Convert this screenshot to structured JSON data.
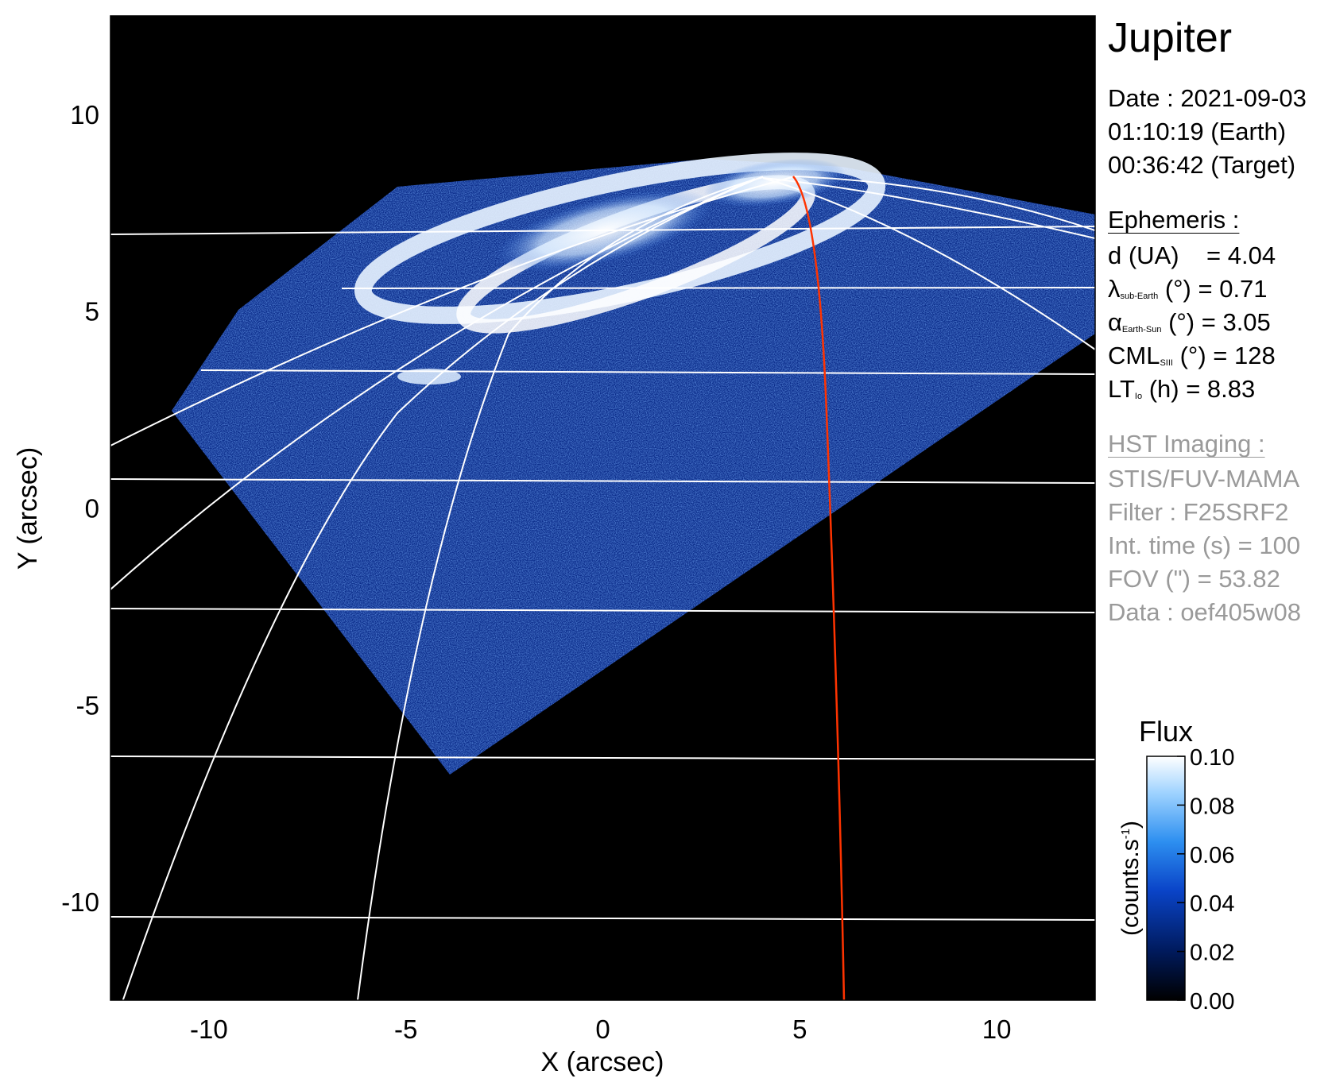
{
  "figure": {
    "target": "Jupiter",
    "date_line": "Date : 2021-09-03",
    "time_earth": "01:10:19 (Earth)",
    "time_target": "00:36:42 (Target)"
  },
  "ephemeris": {
    "header": "Ephemeris :",
    "d_label": "d (UA)",
    "d_value": "= 4.04",
    "lambda_label": "λ",
    "lambda_sub": "sub-Earth",
    "lambda_rest": "(°) = 0.71",
    "alpha_label": "α",
    "alpha_sub": "Earth-Sun",
    "alpha_rest": "(°) = 3.05",
    "cml_label": "CML",
    "cml_sub": "SIII",
    "cml_rest": "(°) = 128",
    "lt_label": "LT",
    "lt_sub": "Io",
    "lt_rest": "(h) = 8.83"
  },
  "hst": {
    "header": "HST Imaging :",
    "instrument": "STIS/FUV-MAMA",
    "filter": "Filter : F25SRF2",
    "int_time": "Int. time (s) = 100",
    "fov": "FOV (\") = 53.82",
    "data": "Data : oef405w08"
  },
  "colorbar": {
    "title": "Flux",
    "unit": "(counts.s",
    "unit_sup": "-1",
    "unit_close": ")",
    "ticks": [
      "0.00",
      "0.02",
      "0.04",
      "0.06",
      "0.08",
      "0.10"
    ],
    "range": [
      0.0,
      0.1
    ],
    "colors": [
      "#000000",
      "#001a5c",
      "#0a44c8",
      "#2d8ff0",
      "#9fd3ff",
      "#ffffff"
    ]
  },
  "chart_data": {
    "type": "heatmap",
    "xlabel": "X (arcsec)",
    "ylabel": "Y (arcsec)",
    "xlim": [
      -12.5,
      12.5
    ],
    "ylim": [
      -12.5,
      12.5
    ],
    "xticks": [
      -10,
      -5,
      0,
      5,
      10
    ],
    "yticks": [
      -10,
      -5,
      0,
      5,
      10
    ],
    "grid_color": "#ffffff",
    "meridian_color": "#ff3300",
    "background": "#000000"
  }
}
